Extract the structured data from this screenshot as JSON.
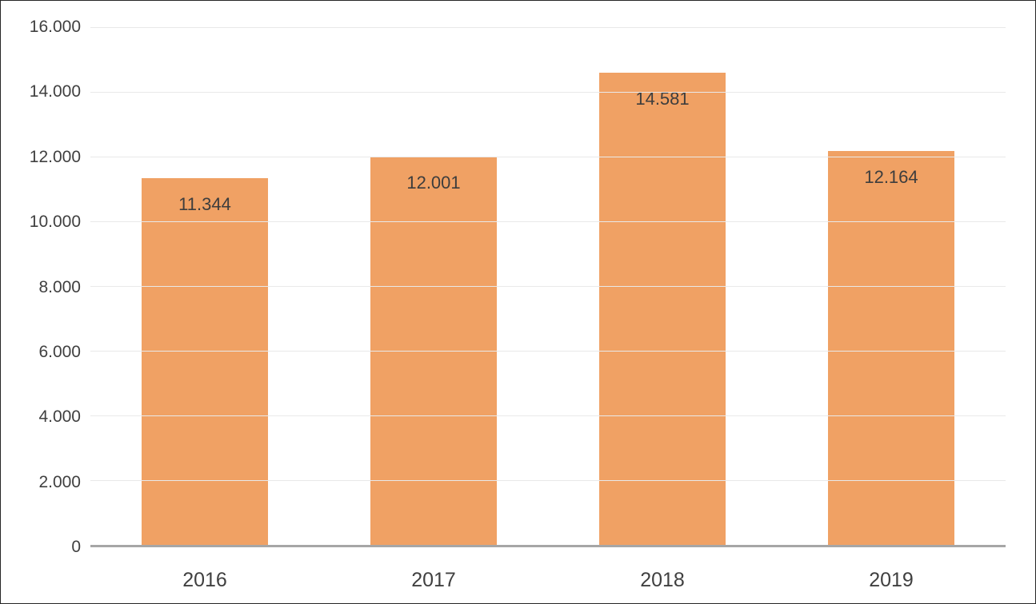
{
  "chart_data": {
    "type": "bar",
    "title": "",
    "xlabel": "",
    "ylabel": "",
    "categories": [
      "2016",
      "2017",
      "2018",
      "2019"
    ],
    "values": [
      11344,
      12001,
      14581,
      12164
    ],
    "value_labels": [
      "11.344",
      "12.001",
      "14.581",
      "12.164"
    ],
    "ylim": [
      0,
      16000
    ],
    "ytick_interval": 2000,
    "ytick_labels": [
      "0",
      "2.000",
      "4.000",
      "6.000",
      "8.000",
      "10.000",
      "12.000",
      "14.000",
      "16.000"
    ],
    "grid": true,
    "legend_position": "none",
    "bar_color": "#f0a164",
    "gridline_color": "#e9e9e9",
    "axis_line_color": "#a6a6a6",
    "text_color": "#404040"
  }
}
